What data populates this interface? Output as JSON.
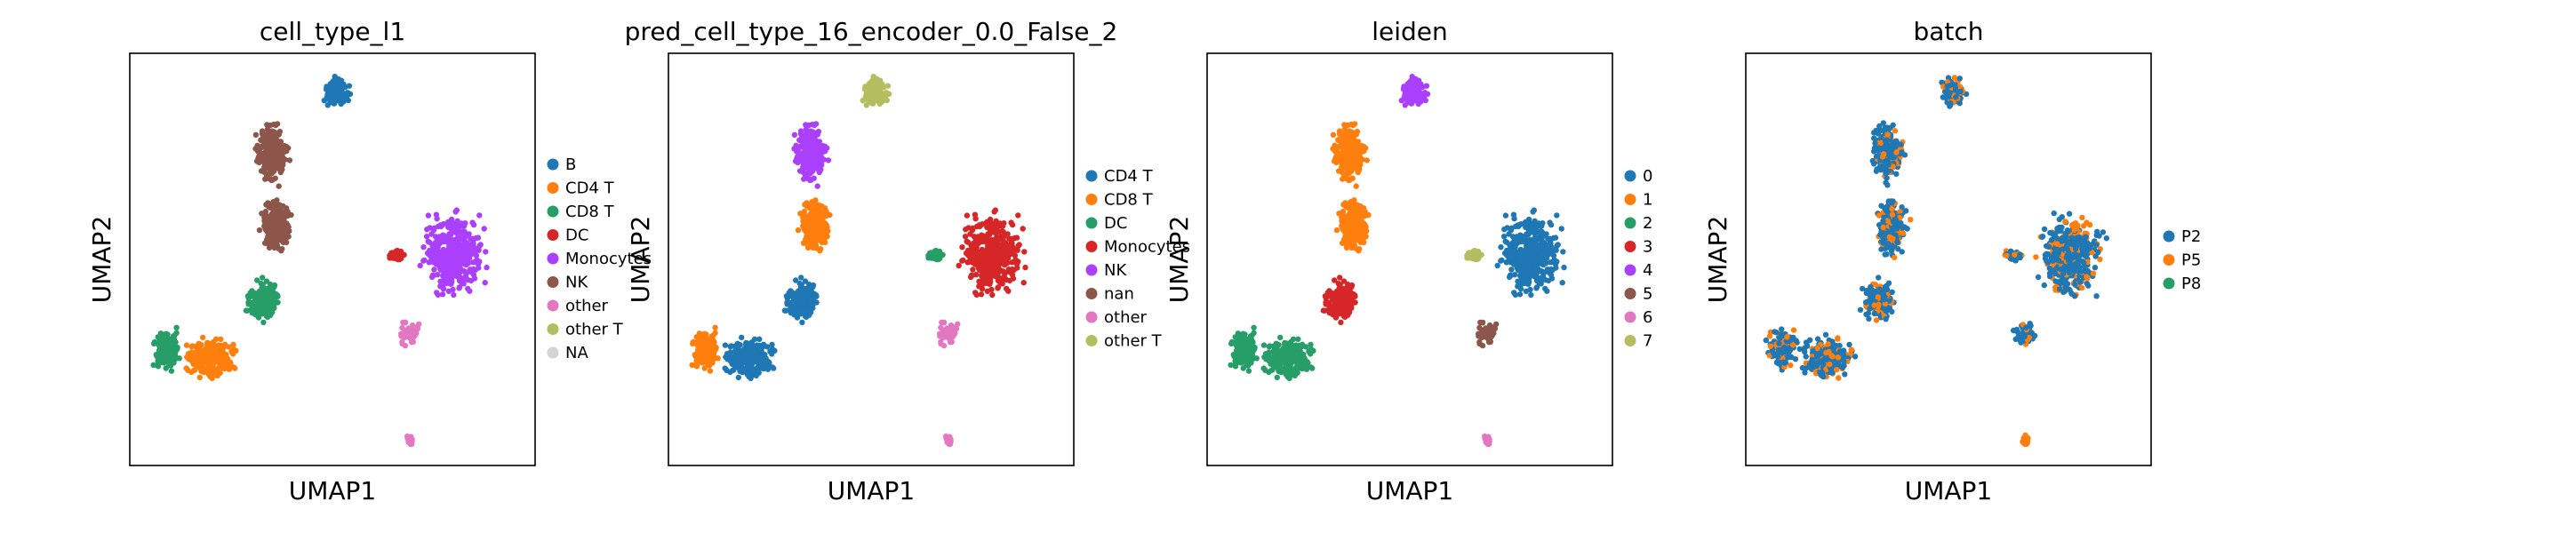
{
  "chart_data": [
    {
      "type": "scatter",
      "title": "cell_type_l1",
      "xlabel": "UMAP1",
      "ylabel": "UMAP2",
      "ticks": "none",
      "legend_position": "right",
      "legend": [
        {
          "label": "B",
          "color": "#1f77b4"
        },
        {
          "label": "CD4 T",
          "color": "#ff7f0e"
        },
        {
          "label": "CD8 T",
          "color": "#279e68"
        },
        {
          "label": "DC",
          "color": "#d62728"
        },
        {
          "label": "Monocytes",
          "color": "#aa40fc"
        },
        {
          "label": "NK",
          "color": "#8c564b"
        },
        {
          "label": "other",
          "color": "#e377c2"
        },
        {
          "label": "other T",
          "color": "#b5bd61"
        },
        {
          "label": "NA",
          "color": "#d3d3d3"
        }
      ],
      "clusters": [
        {
          "name": "B",
          "color": "#1f77b4"
        },
        {
          "name": "CD4 T",
          "color": "#ff7f0e"
        },
        {
          "name": "CD8 T",
          "color": "#279e68"
        },
        {
          "name": "DC",
          "color": "#d62728"
        },
        {
          "name": "Monocytes",
          "color": "#aa40fc"
        },
        {
          "name": "NK",
          "color": "#8c564b"
        },
        {
          "name": "other",
          "color": "#e377c2"
        },
        {
          "name": "other T",
          "color": "#b5bd61"
        }
      ]
    },
    {
      "type": "scatter",
      "title": "pred_cell_type_16_encoder_0.0_False_2",
      "xlabel": "UMAP1",
      "ylabel": "UMAP2",
      "ticks": "none",
      "legend_position": "right",
      "legend": [
        {
          "label": "CD4 T",
          "color": "#1f77b4"
        },
        {
          "label": "CD8 T",
          "color": "#ff7f0e"
        },
        {
          "label": "DC",
          "color": "#279e68"
        },
        {
          "label": "Monocytes",
          "color": "#d62728"
        },
        {
          "label": "NK",
          "color": "#aa40fc"
        },
        {
          "label": "nan",
          "color": "#8c564b"
        },
        {
          "label": "other",
          "color": "#e377c2"
        },
        {
          "label": "other T",
          "color": "#b5bd61"
        }
      ]
    },
    {
      "type": "scatter",
      "title": "leiden",
      "xlabel": "UMAP1",
      "ylabel": "UMAP2",
      "ticks": "none",
      "legend_position": "right",
      "legend": [
        {
          "label": "0",
          "color": "#1f77b4"
        },
        {
          "label": "1",
          "color": "#ff7f0e"
        },
        {
          "label": "2",
          "color": "#279e68"
        },
        {
          "label": "3",
          "color": "#d62728"
        },
        {
          "label": "4",
          "color": "#aa40fc"
        },
        {
          "label": "5",
          "color": "#8c564b"
        },
        {
          "label": "6",
          "color": "#e377c2"
        },
        {
          "label": "7",
          "color": "#b5bd61"
        }
      ]
    },
    {
      "type": "scatter",
      "title": "batch",
      "xlabel": "UMAP1",
      "ylabel": "UMAP2",
      "ticks": "none",
      "legend_position": "right",
      "legend": [
        {
          "label": "P2",
          "color": "#1f77b4"
        },
        {
          "label": "P5",
          "color": "#ff7f0e"
        },
        {
          "label": "P8",
          "color": "#279e68"
        }
      ]
    }
  ]
}
